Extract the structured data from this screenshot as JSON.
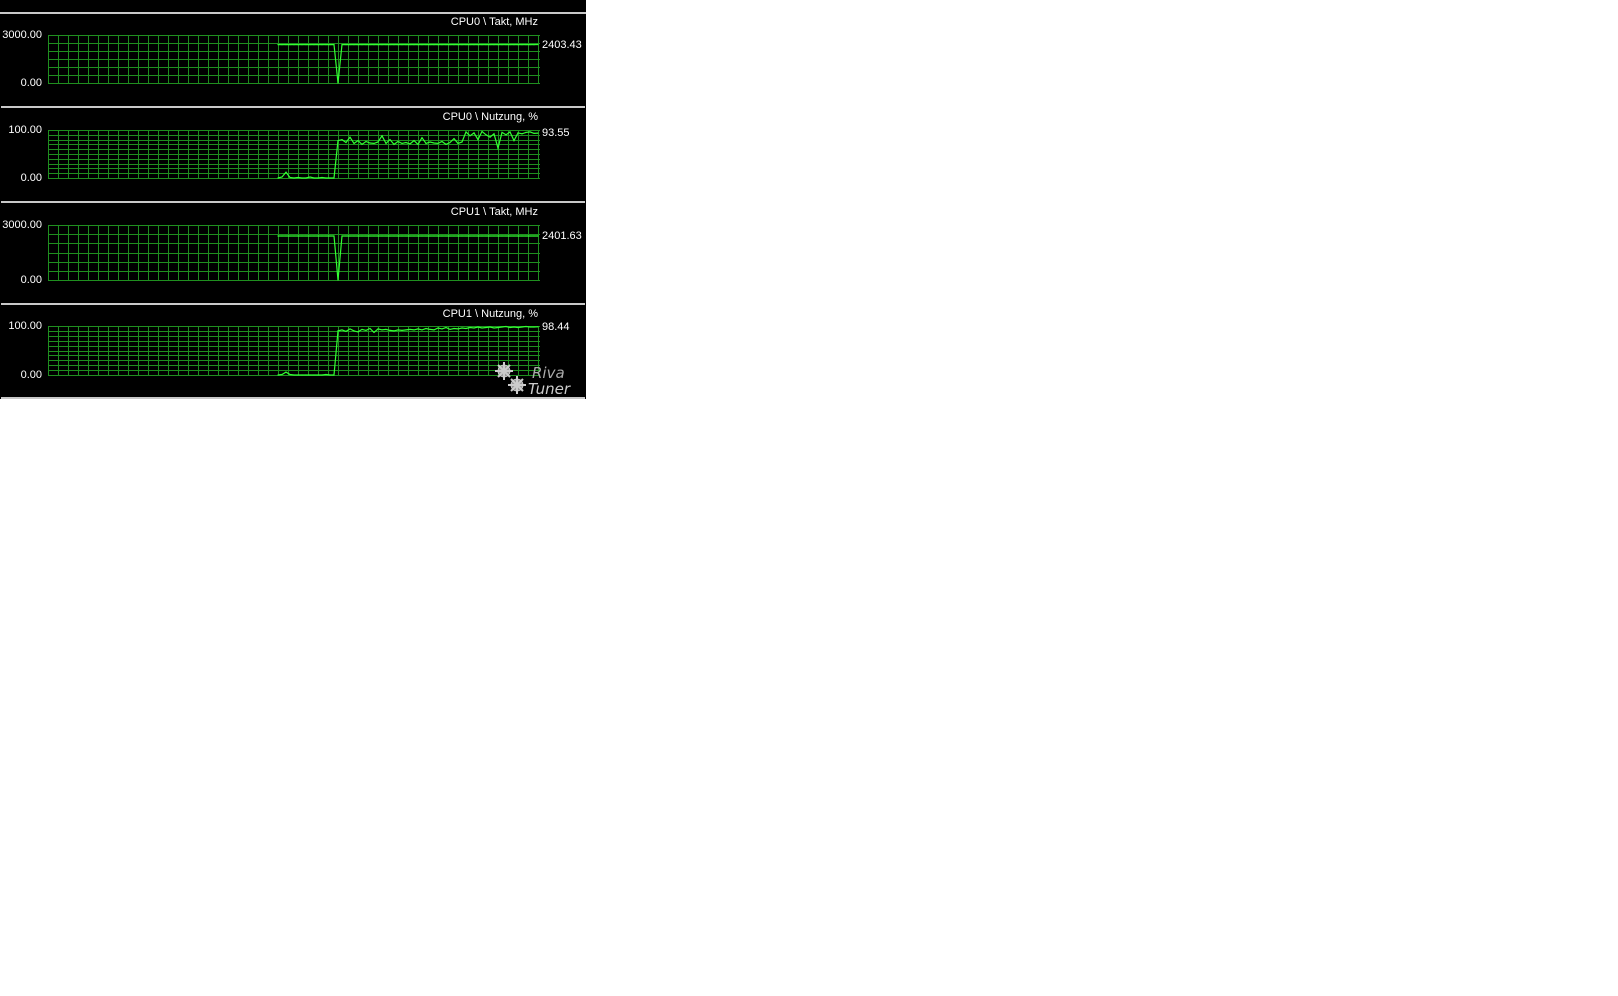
{
  "chart_data": [
    {
      "type": "line",
      "title": "CPU0 \\ Takt, MHz",
      "ylim": [
        0,
        3000
      ],
      "ytick_labels": [
        "3000.00",
        "0.00"
      ],
      "current_value": "2403.43",
      "grid": true,
      "color": "#33ff33",
      "values": [
        2400,
        2400,
        2400,
        2400,
        2400,
        2400,
        2400,
        2400,
        2400,
        2400,
        2400,
        2400,
        2400,
        2400,
        2400,
        0,
        2400,
        2400,
        2400,
        2400,
        2400,
        2400,
        2400,
        2400,
        2400,
        2400,
        2400,
        2400,
        2400,
        2400,
        2400,
        2400,
        2400,
        2400,
        2400,
        2400,
        2400,
        2400,
        2400,
        2400,
        2400,
        2400,
        2400,
        2400,
        2400,
        2400,
        2400,
        2400,
        2400,
        2400,
        2400,
        2400,
        2400,
        2400,
        2400,
        2400,
        2400,
        2400,
        2400,
        2400,
        2400,
        2400,
        2400,
        2400,
        2400,
        2403.43
      ]
    },
    {
      "type": "line",
      "title": "CPU0 \\ Nutzung, %",
      "ylim": [
        0,
        100
      ],
      "ytick_labels": [
        "100.00",
        "0.00"
      ],
      "current_value": "93.55",
      "grid": true,
      "color": "#33ff33",
      "values": [
        0,
        2,
        12,
        1,
        0,
        1,
        0,
        0,
        2,
        0,
        0,
        1,
        0,
        0,
        0,
        78,
        80,
        74,
        85,
        72,
        78,
        70,
        76,
        73,
        72,
        75,
        88,
        72,
        80,
        70,
        76,
        72,
        74,
        71,
        78,
        70,
        84,
        72,
        75,
        73,
        72,
        76,
        70,
        74,
        82,
        72,
        75,
        96,
        88,
        94,
        80,
        97,
        90,
        85,
        92,
        62,
        95,
        90,
        96,
        78,
        94,
        92,
        95,
        96,
        93,
        93.55
      ]
    },
    {
      "type": "line",
      "title": "CPU1 \\ Takt, MHz",
      "ylim": [
        0,
        3000
      ],
      "ytick_labels": [
        "3000.00",
        "0.00"
      ],
      "current_value": "2401.63",
      "grid": true,
      "color": "#33ff33",
      "values": [
        2400,
        2400,
        2400,
        2400,
        2400,
        2400,
        2400,
        2400,
        2400,
        2400,
        2400,
        2400,
        2400,
        2400,
        2400,
        0,
        2400,
        2400,
        2400,
        2400,
        2400,
        2400,
        2400,
        2400,
        2400,
        2400,
        2400,
        2400,
        2400,
        2400,
        2400,
        2400,
        2400,
        2400,
        2400,
        2400,
        2400,
        2400,
        2400,
        2400,
        2400,
        2400,
        2400,
        2400,
        2400,
        2400,
        2400,
        2400,
        2400,
        2400,
        2400,
        2400,
        2400,
        2400,
        2400,
        2400,
        2400,
        2400,
        2400,
        2400,
        2400,
        2400,
        2400,
        2400,
        2400,
        2401.63
      ]
    },
    {
      "type": "line",
      "title": "CPU1 \\ Nutzung, %",
      "ylim": [
        0,
        100
      ],
      "ytick_labels": [
        "100.00",
        "0.00"
      ],
      "current_value": "98.44",
      "grid": true,
      "color": "#33ff33",
      "values": [
        0,
        1,
        6,
        1,
        0,
        0,
        0,
        0,
        0,
        0,
        0,
        0,
        1,
        0,
        0,
        90,
        92,
        89,
        94,
        90,
        88,
        93,
        91,
        95,
        87,
        94,
        92,
        93,
        91,
        90,
        92,
        91,
        92,
        93,
        92,
        94,
        92,
        95,
        93,
        92,
        96,
        94,
        97,
        93,
        95,
        94,
        96,
        95,
        97,
        96,
        98,
        96,
        97,
        98,
        96,
        97,
        98,
        99,
        97,
        98,
        97,
        98,
        99,
        98,
        98,
        98.44
      ]
    }
  ],
  "logo": {
    "text": "RivaTuner"
  },
  "colors": {
    "background": "#000000",
    "grid": "#1f8f1f",
    "line": "#33ff33",
    "separator": "#c8c8c8"
  }
}
